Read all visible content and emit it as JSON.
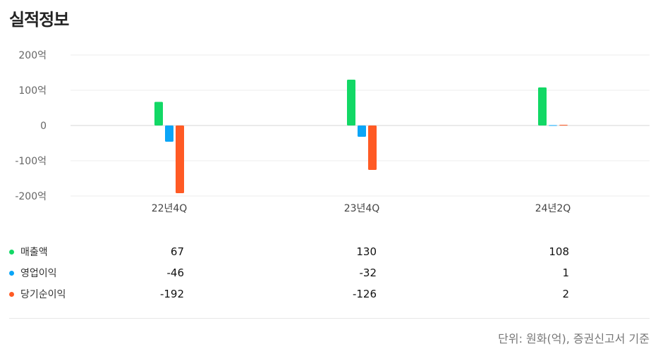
{
  "title": "실적정보",
  "chart_data": {
    "type": "bar",
    "categories": [
      "22년4Q",
      "23년4Q",
      "24년2Q"
    ],
    "series": [
      {
        "name": "매출액",
        "color": "#12d865",
        "values": [
          67,
          130,
          108
        ]
      },
      {
        "name": "영업이익",
        "color": "#0aa5f7",
        "values": [
          -46,
          -32,
          1
        ]
      },
      {
        "name": "당기순이익",
        "color": "#ff5a24",
        "values": [
          -192,
          -126,
          2
        ]
      }
    ],
    "ylim": [
      -200,
      200
    ],
    "yticks": [
      200,
      100,
      0,
      -100,
      -200
    ],
    "ytick_labels": [
      "200억",
      "100억",
      "0",
      "-100억",
      "-200억"
    ],
    "grid": true
  },
  "table": {
    "rows": [
      {
        "label": "매출액",
        "color": "#12d865",
        "values": [
          "67",
          "130",
          "108"
        ]
      },
      {
        "label": "영업이익",
        "color": "#0aa5f7",
        "values": [
          "-46",
          "-32",
          "1"
        ]
      },
      {
        "label": "당기순이익",
        "color": "#ff5a24",
        "values": [
          "-192",
          "-126",
          "2"
        ]
      }
    ]
  },
  "footer": {
    "unit_note": "단위: 원화(억), 증권신고서 기준"
  }
}
